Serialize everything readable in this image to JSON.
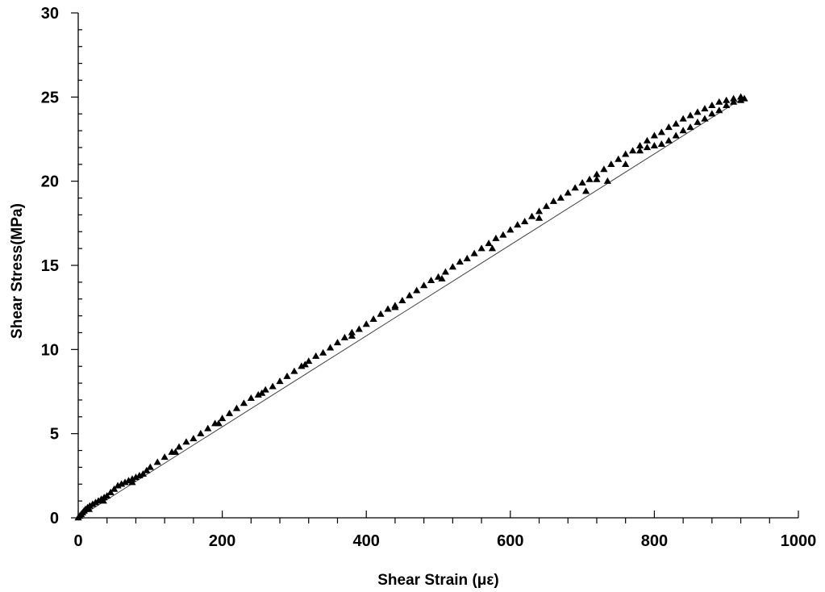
{
  "chart_data": {
    "type": "scatter",
    "xlabel": "Shear Strain (με)",
    "ylabel": "Shear Stress(MPa)",
    "xlim": [
      0,
      1000
    ],
    "ylim": [
      0,
      30
    ],
    "x_ticks": [
      0,
      200,
      400,
      600,
      800,
      1000
    ],
    "y_ticks": [
      0,
      5,
      10,
      15,
      20,
      25,
      30
    ],
    "x_tick_labels": [
      "0",
      "200",
      "400",
      "600",
      "800",
      "1000"
    ],
    "y_tick_labels": [
      "0",
      "5",
      "10",
      "15",
      "20",
      "25",
      "30"
    ],
    "x_minor_step": 40,
    "y_minor_step": 1,
    "grid": false,
    "marker": "triangle",
    "series": [
      {
        "points": [
          [
            0,
            0.0
          ],
          [
            2,
            0.1
          ],
          [
            4,
            0.2
          ],
          [
            6,
            0.3
          ],
          [
            8,
            0.4
          ],
          [
            10,
            0.5
          ],
          [
            13,
            0.6
          ],
          [
            16,
            0.7
          ],
          [
            20,
            0.8
          ],
          [
            24,
            0.9
          ],
          [
            28,
            1.0
          ],
          [
            32,
            1.1
          ],
          [
            36,
            1.2
          ],
          [
            40,
            1.3
          ],
          [
            45,
            1.5
          ],
          [
            50,
            1.7
          ],
          [
            55,
            1.9
          ],
          [
            60,
            2.0
          ],
          [
            65,
            2.1
          ],
          [
            70,
            2.2
          ],
          [
            75,
            2.3
          ],
          [
            80,
            2.4
          ],
          [
            85,
            2.5
          ],
          [
            90,
            2.6
          ],
          [
            95,
            2.8
          ],
          [
            100,
            3.0
          ],
          [
            110,
            3.3
          ],
          [
            120,
            3.6
          ],
          [
            130,
            3.9
          ],
          [
            140,
            4.2
          ],
          [
            150,
            4.5
          ],
          [
            160,
            4.7
          ],
          [
            170,
            5.0
          ],
          [
            180,
            5.3
          ],
          [
            190,
            5.6
          ],
          [
            200,
            5.9
          ],
          [
            210,
            6.2
          ],
          [
            220,
            6.5
          ],
          [
            230,
            6.8
          ],
          [
            240,
            7.1
          ],
          [
            250,
            7.3
          ],
          [
            260,
            7.6
          ],
          [
            270,
            7.8
          ],
          [
            280,
            8.1
          ],
          [
            290,
            8.4
          ],
          [
            300,
            8.7
          ],
          [
            310,
            9.0
          ],
          [
            320,
            9.3
          ],
          [
            330,
            9.6
          ],
          [
            340,
            9.8
          ],
          [
            350,
            10.1
          ],
          [
            360,
            10.4
          ],
          [
            370,
            10.7
          ],
          [
            380,
            11.0
          ],
          [
            390,
            11.2
          ],
          [
            400,
            11.5
          ],
          [
            410,
            11.8
          ],
          [
            420,
            12.1
          ],
          [
            430,
            12.4
          ],
          [
            440,
            12.6
          ],
          [
            450,
            12.9
          ],
          [
            460,
            13.2
          ],
          [
            470,
            13.5
          ],
          [
            480,
            13.8
          ],
          [
            490,
            14.1
          ],
          [
            500,
            14.3
          ],
          [
            510,
            14.6
          ],
          [
            520,
            14.9
          ],
          [
            530,
            15.2
          ],
          [
            540,
            15.4
          ],
          [
            550,
            15.7
          ],
          [
            560,
            16.0
          ],
          [
            570,
            16.3
          ],
          [
            580,
            16.6
          ],
          [
            590,
            16.8
          ],
          [
            600,
            17.1
          ],
          [
            610,
            17.4
          ],
          [
            620,
            17.6
          ],
          [
            630,
            17.9
          ],
          [
            640,
            18.2
          ],
          [
            650,
            18.5
          ],
          [
            660,
            18.8
          ],
          [
            670,
            19.0
          ],
          [
            680,
            19.3
          ],
          [
            690,
            19.6
          ],
          [
            700,
            19.9
          ],
          [
            710,
            20.1
          ],
          [
            720,
            20.4
          ],
          [
            730,
            20.7
          ],
          [
            740,
            21.0
          ],
          [
            750,
            21.3
          ],
          [
            760,
            21.6
          ],
          [
            770,
            21.8
          ],
          [
            780,
            22.1
          ],
          [
            790,
            22.4
          ],
          [
            800,
            22.7
          ],
          [
            810,
            22.9
          ],
          [
            820,
            23.2
          ],
          [
            830,
            23.4
          ],
          [
            840,
            23.7
          ],
          [
            850,
            23.9
          ],
          [
            860,
            24.1
          ],
          [
            870,
            24.3
          ],
          [
            880,
            24.5
          ],
          [
            890,
            24.7
          ],
          [
            900,
            24.8
          ],
          [
            910,
            24.9
          ],
          [
            920,
            25.0
          ],
          [
            925,
            24.9
          ],
          [
            780,
            21.8
          ],
          [
            790,
            22.0
          ],
          [
            800,
            22.1
          ],
          [
            810,
            22.2
          ],
          [
            820,
            22.4
          ],
          [
            830,
            22.7
          ],
          [
            840,
            23.0
          ],
          [
            850,
            23.2
          ],
          [
            860,
            23.5
          ],
          [
            870,
            23.7
          ],
          [
            880,
            24.0
          ],
          [
            890,
            24.2
          ],
          [
            900,
            24.5
          ],
          [
            910,
            24.7
          ],
          [
            920,
            24.8
          ],
          [
            735,
            20.0
          ],
          [
            760,
            21.0
          ],
          [
            720,
            20.1
          ],
          [
            705,
            19.4
          ],
          [
            640,
            17.8
          ],
          [
            575,
            16.0
          ],
          [
            505,
            14.2
          ],
          [
            440,
            12.5
          ],
          [
            380,
            10.8
          ],
          [
            315,
            9.1
          ],
          [
            255,
            7.4
          ],
          [
            195,
            5.6
          ],
          [
            135,
            3.9
          ],
          [
            75,
            2.1
          ],
          [
            35,
            1.0
          ],
          [
            15,
            0.5
          ]
        ]
      }
    ],
    "fit_line": {
      "x": [
        0,
        925
      ],
      "y": [
        0,
        25.0
      ]
    }
  }
}
